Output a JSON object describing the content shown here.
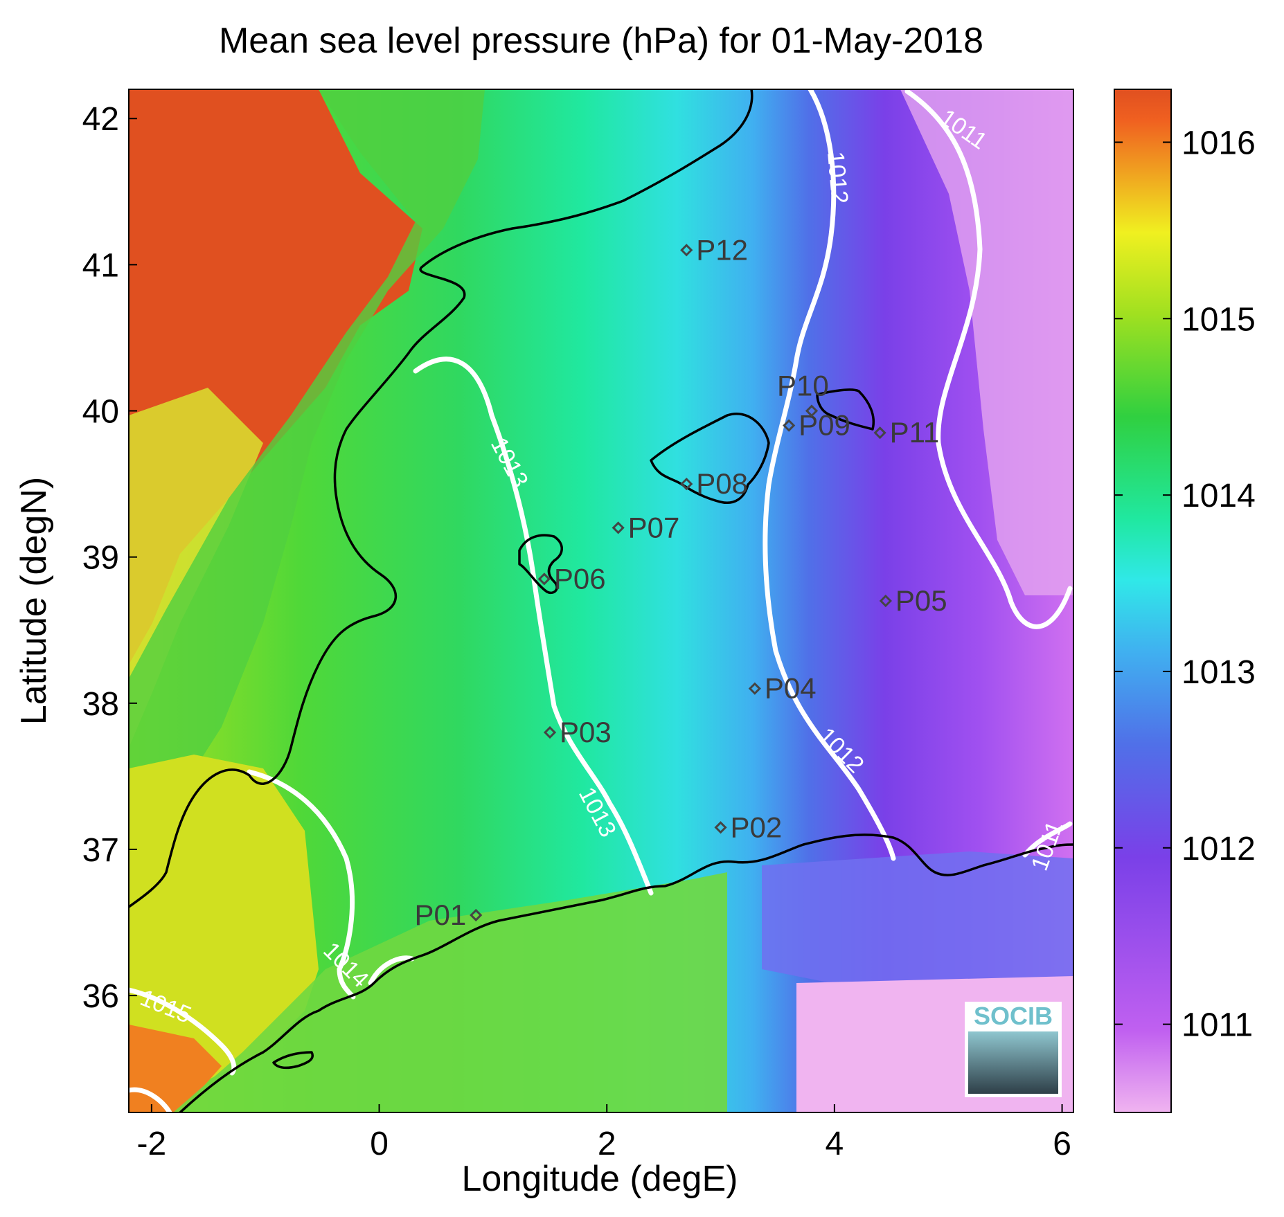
{
  "title": "Mean sea level pressure (hPa) for 01-May-2018",
  "xlabel": "Longitude (degE)",
  "ylabel": "Latitude (degN)",
  "x_ticks": [
    "-2",
    "0",
    "2",
    "4",
    "6"
  ],
  "y_ticks": [
    "36",
    "37",
    "38",
    "39",
    "40",
    "41",
    "42"
  ],
  "colorbar_ticks": [
    "1011",
    "1012",
    "1013",
    "1014",
    "1015",
    "1016"
  ],
  "logo_text": "SOCIB",
  "stations": [
    {
      "name": "P01",
      "lon": 0.85,
      "lat": 36.55
    },
    {
      "name": "P02",
      "lon": 3.0,
      "lat": 37.15
    },
    {
      "name": "P03",
      "lon": 1.5,
      "lat": 37.8
    },
    {
      "name": "P04",
      "lon": 3.3,
      "lat": 38.1
    },
    {
      "name": "P05",
      "lon": 4.45,
      "lat": 38.7
    },
    {
      "name": "P06",
      "lon": 1.45,
      "lat": 38.85
    },
    {
      "name": "P07",
      "lon": 2.1,
      "lat": 39.2
    },
    {
      "name": "P08",
      "lon": 2.7,
      "lat": 39.5
    },
    {
      "name": "P09",
      "lon": 3.6,
      "lat": 39.9
    },
    {
      "name": "P10",
      "lon": 3.8,
      "lat": 40.0
    },
    {
      "name": "P11",
      "lon": 4.4,
      "lat": 39.85
    },
    {
      "name": "P12",
      "lon": 2.7,
      "lat": 41.1
    }
  ],
  "contour_labels": [
    "1011",
    "1011",
    "1012",
    "1012",
    "1013",
    "1013",
    "1014",
    "1015"
  ],
  "colors": {
    "colormap": [
      "#f0b4f0",
      "#c060f0",
      "#7a40e8",
      "#5070e8",
      "#40b0f0",
      "#30e8e8",
      "#20e8a0",
      "#30d040",
      "#a0e020",
      "#f0f020",
      "#f0a020",
      "#f06020",
      "#e05020"
    ],
    "contour": "#ffffff",
    "coastline": "#000000",
    "station_marker": "#444444"
  },
  "chart_data": {
    "type": "heatmap",
    "title": "Mean sea level pressure (hPa) for 01-May-2018",
    "xlabel": "Longitude (degE)",
    "ylabel": "Latitude (degN)",
    "xlim": [
      -2.2,
      6.1
    ],
    "ylim": [
      35.2,
      42.2
    ],
    "clim": [
      1010.5,
      1016.3
    ],
    "colorbar_label_values": [
      1011,
      1012,
      1013,
      1014,
      1015,
      1016
    ],
    "contour_levels": [
      1011,
      1012,
      1013,
      1014,
      1015
    ]
  }
}
